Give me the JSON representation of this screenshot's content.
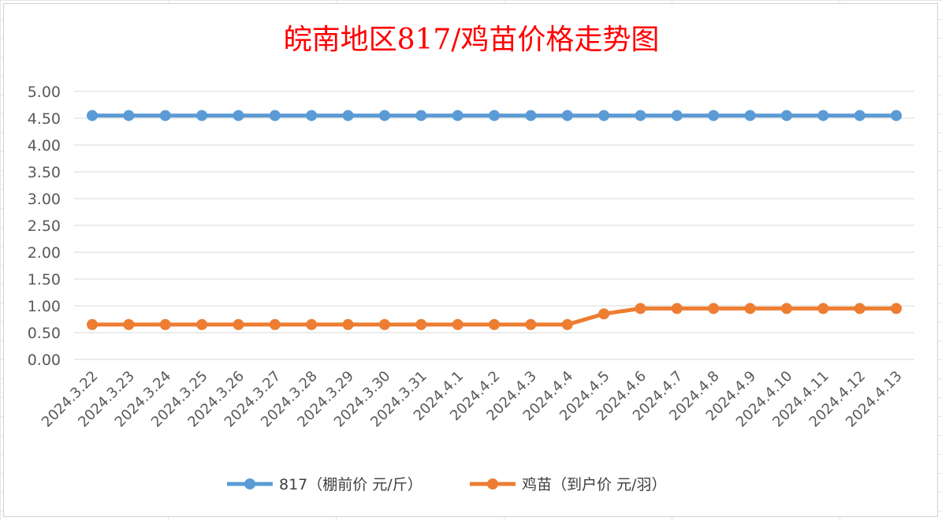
{
  "chart_data": {
    "type": "line",
    "title": "皖南地区817/鸡苗价格走势图",
    "xlabel": "",
    "ylabel": "",
    "categories": [
      "2024.3.22",
      "2024.3.23",
      "2024.3.24",
      "2024.3.25",
      "2024.3.26",
      "2024.3.27",
      "2024.3.28",
      "2024.3.29",
      "2024.3.30",
      "2024.3.31",
      "2024.4.1",
      "2024.4.2",
      "2024.4.3",
      "2024.4.4",
      "2024.4.5",
      "2024.4.6",
      "2024.4.7",
      "2024.4.8",
      "2024.4.9",
      "2024.4.10",
      "2024.4.11",
      "2024.4.12",
      "2024.4.13"
    ],
    "yticks": [
      "0.00",
      "0.50",
      "1.00",
      "1.50",
      "2.00",
      "2.50",
      "3.00",
      "3.50",
      "4.00",
      "4.50",
      "5.00"
    ],
    "ylim": [
      0,
      5
    ],
    "grid": true,
    "legend_position": "bottom",
    "series": [
      {
        "name": "817（棚前价 元/斤）",
        "color": "#5b9bd5",
        "values": [
          4.55,
          4.55,
          4.55,
          4.55,
          4.55,
          4.55,
          4.55,
          4.55,
          4.55,
          4.55,
          4.55,
          4.55,
          4.55,
          4.55,
          4.55,
          4.55,
          4.55,
          4.55,
          4.55,
          4.55,
          4.55,
          4.55,
          4.55
        ]
      },
      {
        "name": "鸡苗（到户价 元/羽）",
        "color": "#ed7d31",
        "values": [
          0.65,
          0.65,
          0.65,
          0.65,
          0.65,
          0.65,
          0.65,
          0.65,
          0.65,
          0.65,
          0.65,
          0.65,
          0.65,
          0.65,
          0.85,
          0.95,
          0.95,
          0.95,
          0.95,
          0.95,
          0.95,
          0.95,
          0.95
        ]
      }
    ]
  }
}
